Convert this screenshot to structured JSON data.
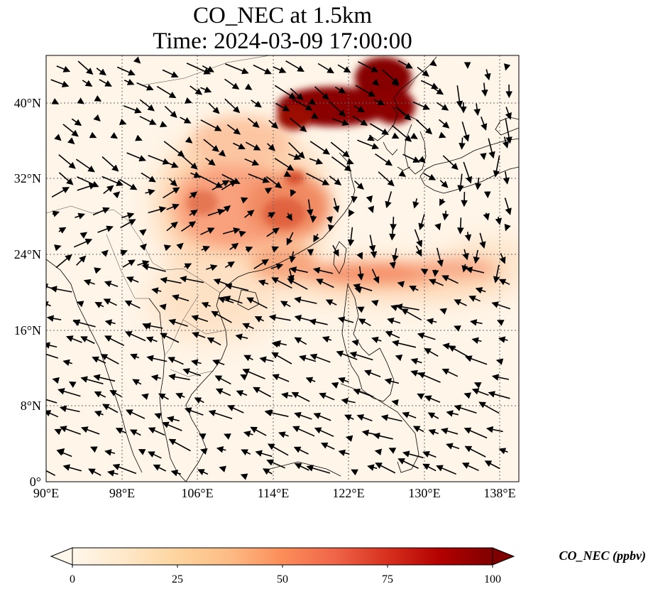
{
  "title_line1": "CO_NEC at 1.5km",
  "title_line2": "Time: 2024-03-09 17:00:00",
  "map": {
    "lon_range": [
      90,
      140
    ],
    "lat_range": [
      0,
      45
    ],
    "lon_ticks": [
      "90°E",
      "98°E",
      "106°E",
      "114°E",
      "122°E",
      "130°E",
      "138°E"
    ],
    "lat_ticks": [
      "0°",
      "8°N",
      "16°N",
      "24°N",
      "32°N",
      "40°N"
    ],
    "gridlines": true
  },
  "colorbar": {
    "label": "CO_NEC (ppbv)",
    "ticks": [
      "0",
      "25",
      "50",
      "75",
      "100"
    ],
    "range": [
      0,
      100
    ],
    "colormap": "OrRd",
    "colors": [
      "#fff7ec",
      "#fee8c8",
      "#fdd49e",
      "#fdbb84",
      "#fc8d59",
      "#ef6548",
      "#d7301f",
      "#b30000",
      "#7f0000"
    ],
    "extend": "both"
  }
}
